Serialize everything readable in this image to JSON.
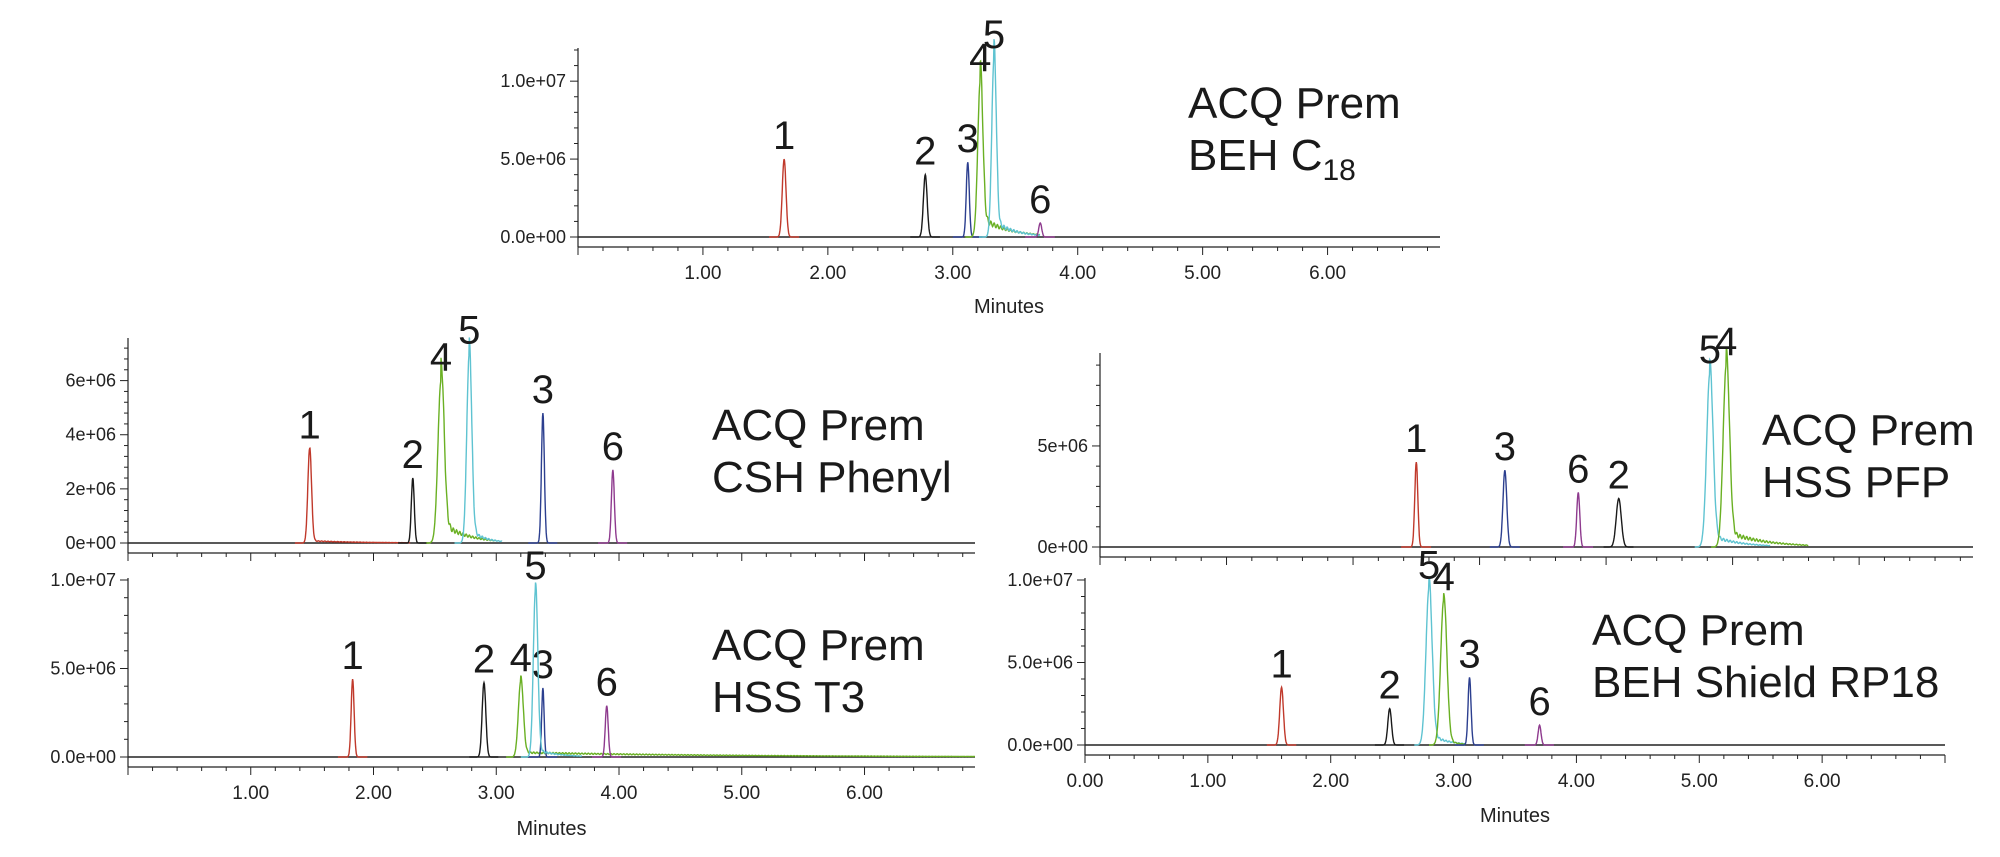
{
  "colors": {
    "red": "#c0392b",
    "black": "#1a1a1a",
    "blue": "#2c3f8f",
    "green": "#6ab023",
    "cyan": "#5fc3d1",
    "purple": "#8e3a8e",
    "axis": "#222222"
  },
  "chart_data": [
    {
      "type": "line",
      "title_lines": [
        "ACQ Prem",
        "BEH C"
      ],
      "title_sub": "18",
      "xlabel": "Minutes",
      "ylabel": "",
      "xlim": [
        0,
        6.9
      ],
      "ylim": [
        0,
        12000000
      ],
      "xticks": [
        1,
        2,
        3,
        4,
        5,
        6
      ],
      "xtick_labels": [
        "1.00",
        "2.00",
        "3.00",
        "4.00",
        "5.00",
        "6.00"
      ],
      "yticks": [
        0,
        5000000,
        10000000
      ],
      "ytick_labels": [
        "0.0e+00",
        "5.0e+06",
        "1.0e+07"
      ],
      "grid": false,
      "series": [
        {
          "color": "red",
          "peak": 1.65,
          "height": 5000000,
          "width": 0.015,
          "tail": 0,
          "label": "1"
        },
        {
          "color": "black",
          "peak": 2.78,
          "height": 4000000,
          "width": 0.015,
          "tail": 0,
          "label": "2"
        },
        {
          "color": "blue",
          "peak": 3.12,
          "height": 4800000,
          "width": 0.012,
          "tail": 0,
          "label": "3"
        },
        {
          "color": "green",
          "peak": 3.22,
          "height": 10000000,
          "width": 0.02,
          "tail": 1500000,
          "tail_end": 3.7,
          "label": "4"
        },
        {
          "color": "cyan",
          "peak": 3.33,
          "height": 11500000,
          "width": 0.018,
          "tail": 1200000,
          "tail_end": 3.7,
          "label": "5"
        },
        {
          "color": "purple",
          "peak": 3.7,
          "height": 900000,
          "width": 0.012,
          "tail": 0,
          "label": "6"
        }
      ]
    },
    {
      "type": "line",
      "title_lines": [
        "ACQ Prem",
        "CSH Phenyl"
      ],
      "xlabel": "",
      "ylabel": "",
      "xlim": [
        0,
        6.9
      ],
      "ylim": [
        0,
        7500000
      ],
      "xticks": [
        1,
        2,
        3,
        4,
        5,
        6
      ],
      "xtick_labels": [],
      "yticks": [
        0,
        2000000,
        4000000,
        6000000
      ],
      "ytick_labels": [
        "0e+00",
        "2e+06",
        "4e+06",
        "6e+06"
      ],
      "grid": false,
      "series": [
        {
          "color": "red",
          "peak": 1.48,
          "height": 3500000,
          "width": 0.015,
          "tail": 100000,
          "tail_end": 2.3,
          "label": "1"
        },
        {
          "color": "black",
          "peak": 2.32,
          "height": 2400000,
          "width": 0.012,
          "tail": 0,
          "label": "2"
        },
        {
          "color": "green",
          "peak": 2.55,
          "height": 6000000,
          "width": 0.025,
          "tail": 900000,
          "tail_end": 3.0,
          "label": "4"
        },
        {
          "color": "cyan",
          "peak": 2.78,
          "height": 7000000,
          "width": 0.02,
          "tail": 600000,
          "tail_end": 3.05,
          "label": "5"
        },
        {
          "color": "blue",
          "peak": 3.38,
          "height": 4800000,
          "width": 0.012,
          "tail": 0,
          "label": "3"
        },
        {
          "color": "purple",
          "peak": 3.95,
          "height": 2700000,
          "width": 0.012,
          "tail": 0,
          "label": "6"
        }
      ]
    },
    {
      "type": "line",
      "title_lines": [
        "ACQ Prem",
        "HSS PFP"
      ],
      "xlabel": "",
      "ylabel": "",
      "xlim": [
        0,
        6.9
      ],
      "ylim": [
        0,
        9500000
      ],
      "xticks": [
        1,
        2,
        3,
        4,
        5,
        6
      ],
      "xtick_labels": [],
      "yticks": [
        0,
        5000000
      ],
      "ytick_labels": [
        "0e+00",
        "5e+06"
      ],
      "grid": false,
      "series": [
        {
          "color": "red",
          "peak": 2.5,
          "height": 4200000,
          "width": 0.012,
          "tail": 0,
          "label": "1"
        },
        {
          "color": "blue",
          "peak": 3.2,
          "height": 3800000,
          "width": 0.015,
          "tail": 0,
          "label": "3"
        },
        {
          "color": "purple",
          "peak": 3.78,
          "height": 2700000,
          "width": 0.012,
          "tail": 0,
          "label": "6"
        },
        {
          "color": "black",
          "peak": 4.1,
          "height": 2400000,
          "width": 0.02,
          "tail": 0,
          "label": "2"
        },
        {
          "color": "cyan",
          "peak": 4.82,
          "height": 8600000,
          "width": 0.025,
          "tail": 700000,
          "tail_end": 5.3,
          "label": "5"
        },
        {
          "color": "green",
          "peak": 4.95,
          "height": 9000000,
          "width": 0.025,
          "tail": 900000,
          "tail_end": 5.6,
          "label": "4"
        }
      ]
    },
    {
      "type": "line",
      "title_lines": [
        "ACQ Prem",
        "HSS T3"
      ],
      "xlabel": "Minutes",
      "ylabel": "",
      "xlim": [
        0,
        6.9
      ],
      "ylim": [
        0,
        10000000
      ],
      "xticks": [
        1,
        2,
        3,
        4,
        5,
        6
      ],
      "xtick_labels": [
        "1.00",
        "2.00",
        "3.00",
        "4.00",
        "5.00",
        "6.00"
      ],
      "yticks": [
        0,
        5000000,
        10000000
      ],
      "ytick_labels": [
        "0.0e+00",
        "5.0e+06",
        "1.0e+07"
      ],
      "grid": false,
      "series": [
        {
          "color": "red",
          "peak": 1.83,
          "height": 4400000,
          "width": 0.012,
          "tail": 0,
          "label": "1"
        },
        {
          "color": "black",
          "peak": 2.9,
          "height": 4200000,
          "width": 0.015,
          "tail": 0,
          "label": "2"
        },
        {
          "color": "green",
          "peak": 3.2,
          "height": 4300000,
          "width": 0.02,
          "tail": 300000,
          "tail_end": 6.9,
          "label": "4"
        },
        {
          "color": "blue",
          "peak": 3.38,
          "height": 3900000,
          "width": 0.01,
          "tail": 0,
          "label": "3"
        },
        {
          "color": "cyan",
          "peak": 3.32,
          "height": 9500000,
          "width": 0.018,
          "tail": 500000,
          "tail_end": 3.7,
          "label": "5"
        },
        {
          "color": "purple",
          "peak": 3.9,
          "height": 2900000,
          "width": 0.012,
          "tail": 0,
          "label": "6"
        }
      ]
    },
    {
      "type": "line",
      "title_lines": [
        "ACQ Prem",
        "BEH Shield RP18"
      ],
      "xlabel": "Minutes",
      "ylabel": "",
      "xlim": [
        0,
        7.0
      ],
      "ylim": [
        0,
        10000000
      ],
      "xticks": [
        0,
        1,
        2,
        3,
        4,
        5,
        6
      ],
      "xtick_labels": [
        "0.00",
        "1.00",
        "2.00",
        "3.00",
        "4.00",
        "5.00",
        "6.00"
      ],
      "yticks": [
        0,
        5000000,
        10000000
      ],
      "ytick_labels": [
        "0.0e+00",
        "5.0e+06",
        "1.0e+07"
      ],
      "grid": false,
      "series": [
        {
          "color": "red",
          "peak": 1.6,
          "height": 3500000,
          "width": 0.015,
          "tail": 0,
          "label": "1"
        },
        {
          "color": "black",
          "peak": 2.48,
          "height": 2200000,
          "width": 0.015,
          "tail": 0,
          "label": "2"
        },
        {
          "color": "cyan",
          "peak": 2.8,
          "height": 9500000,
          "width": 0.025,
          "tail": 800000,
          "tail_end": 3.1,
          "label": "5"
        },
        {
          "color": "green",
          "peak": 2.92,
          "height": 8800000,
          "width": 0.025,
          "tail": 500000,
          "tail_end": 3.1,
          "label": "4"
        },
        {
          "color": "blue",
          "peak": 3.13,
          "height": 4100000,
          "width": 0.012,
          "tail": 0,
          "label": "3"
        },
        {
          "color": "purple",
          "peak": 3.7,
          "height": 1200000,
          "width": 0.012,
          "tail": 0,
          "label": "6"
        }
      ]
    }
  ]
}
